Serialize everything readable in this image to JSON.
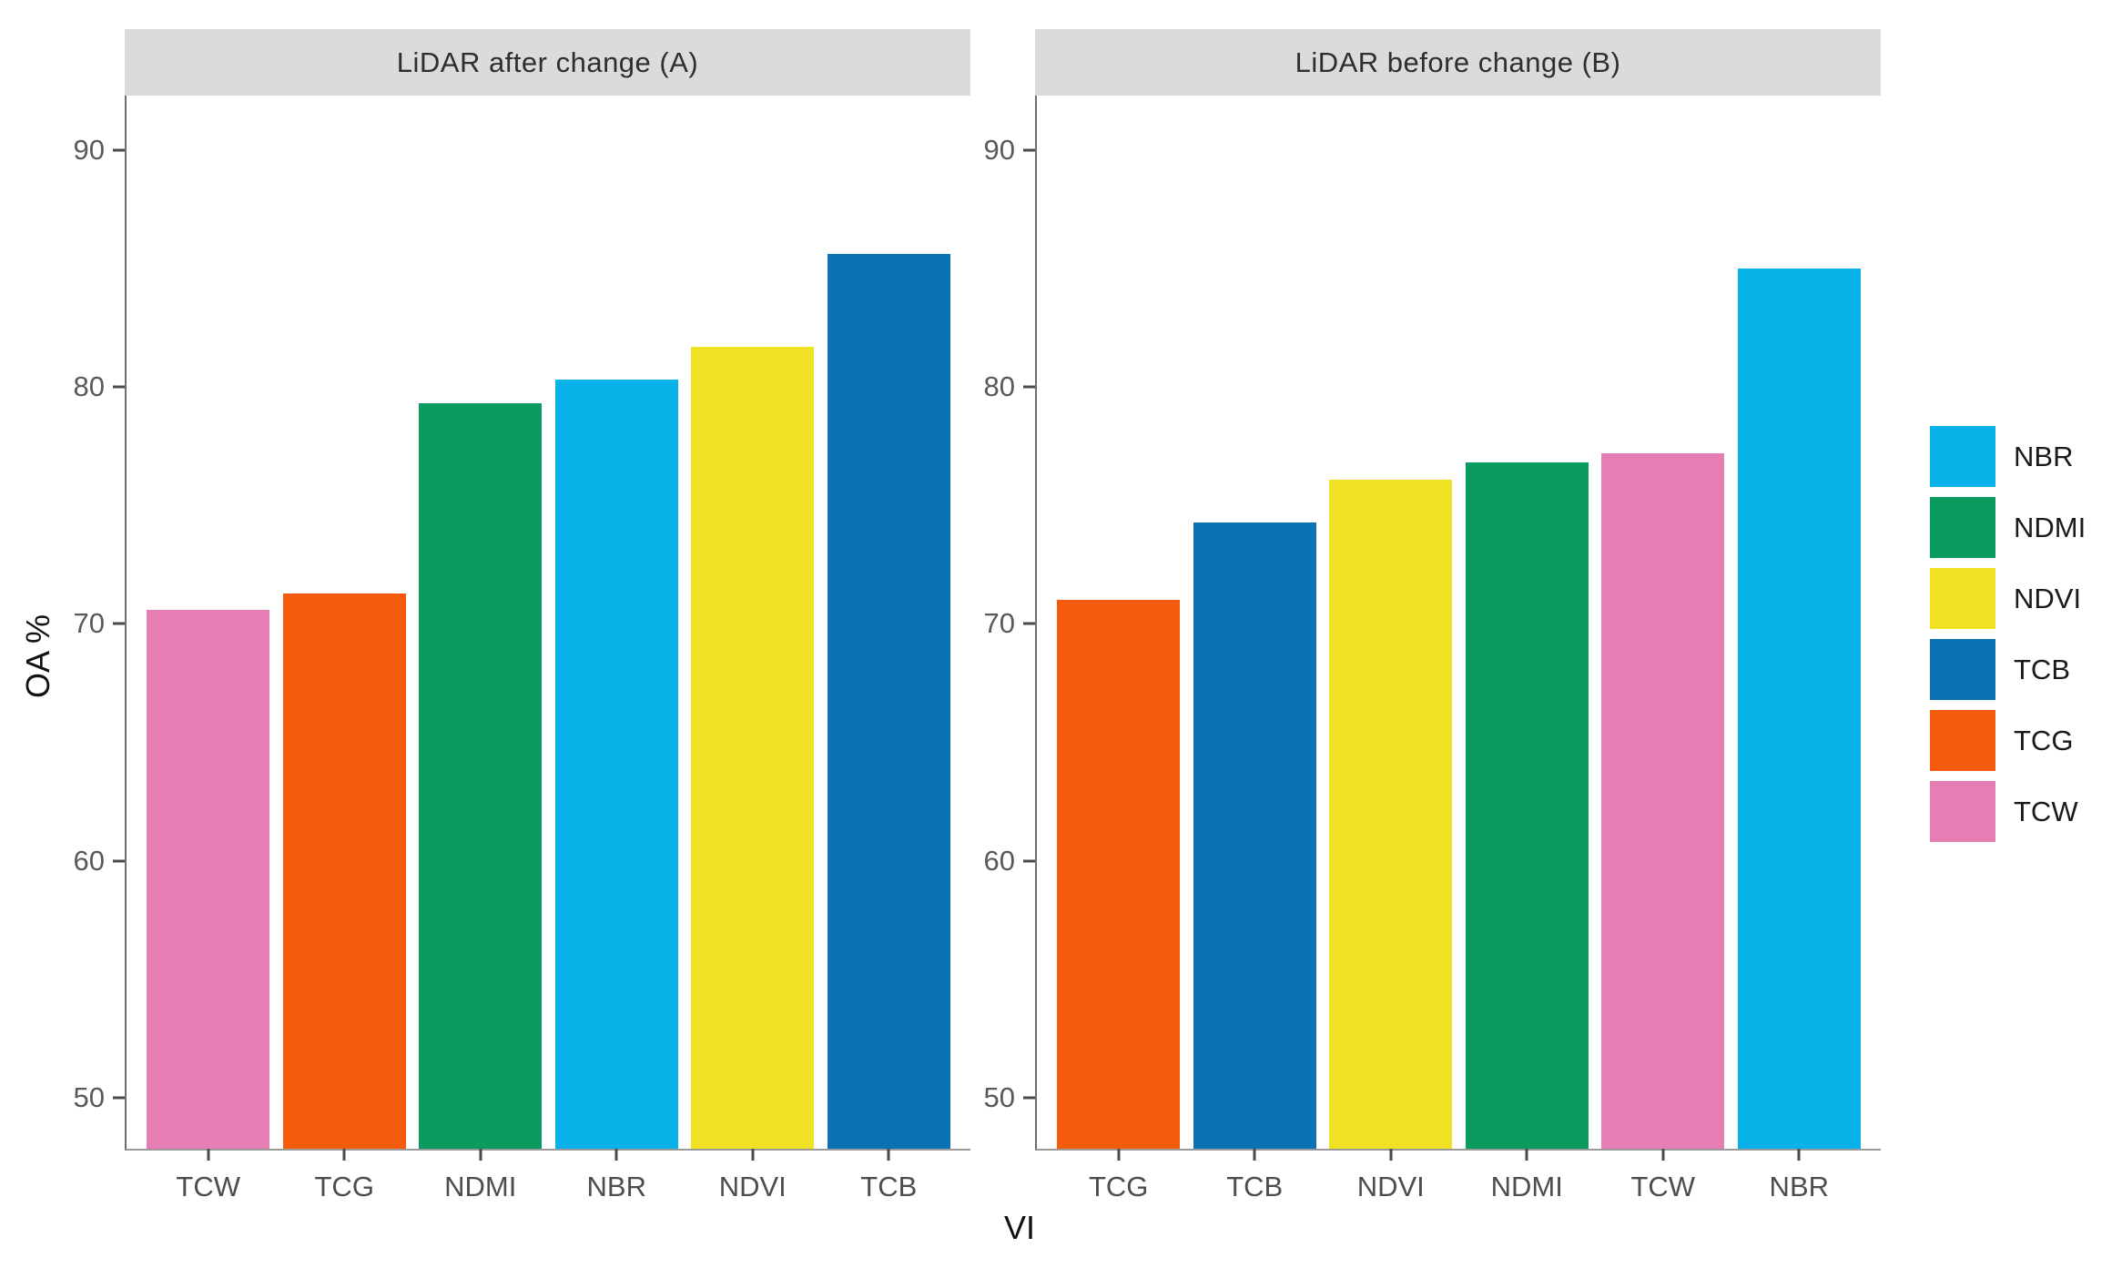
{
  "chart_data": {
    "type": "bar",
    "title": "",
    "xlabel": "VI",
    "ylabel": "OA %",
    "ylim": [
      47.85,
      92.3
    ],
    "yticks": [
      50,
      60,
      70,
      80,
      90
    ],
    "grid": "off",
    "legend_position": "right",
    "strip_background": "#dbdbdb",
    "palette": {
      "NBR": "#09b1e9",
      "NDMI": "#0a9b61",
      "NDVI": "#f0e122",
      "TCB": "#0b73b3",
      "TCG": "#f45b0c",
      "TCW": "#e77eb3"
    },
    "legend_entries": [
      "NBR",
      "NDMI",
      "NDVI",
      "TCB",
      "TCG",
      "TCW"
    ],
    "facets": [
      {
        "title": "LiDAR after change (A)",
        "categories": [
          "TCW",
          "TCG",
          "NDMI",
          "NBR",
          "NDVI",
          "TCB"
        ],
        "values": [
          70.6,
          71.3,
          79.3,
          80.3,
          81.7,
          85.6
        ]
      },
      {
        "title": "LiDAR before change (B)",
        "categories": [
          "TCG",
          "TCB",
          "NDVI",
          "NDMI",
          "TCW",
          "NBR"
        ],
        "values": [
          71.0,
          74.3,
          76.1,
          76.8,
          77.2,
          85.0
        ]
      }
    ]
  }
}
